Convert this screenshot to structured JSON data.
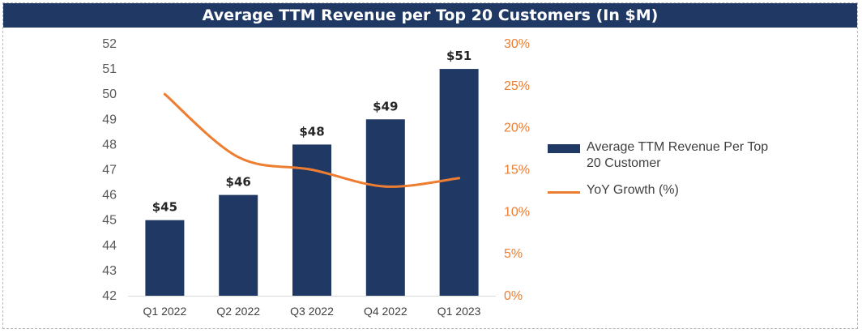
{
  "chart_data": {
    "type": "bar",
    "title": "Average TTM Revenue per Top 20 Customers (In $M)",
    "categories": [
      "Q1 2022",
      "Q2 2022",
      "Q3 2022",
      "Q4 2022",
      "Q1 2023"
    ],
    "series": [
      {
        "name": "Average TTM Revenue Per Top 20 Customer",
        "type": "bar",
        "axis": "left",
        "values": [
          45,
          46,
          48,
          49,
          51
        ],
        "data_labels": [
          "$45",
          "$46",
          "$48",
          "$49",
          "$51"
        ],
        "color": "#1f3864"
      },
      {
        "name": "YoY Growth (%)",
        "type": "line",
        "axis": "right",
        "values": [
          0.24,
          0.165,
          0.15,
          0.13,
          0.14
        ],
        "color": "#ed7d31"
      }
    ],
    "left_axis": {
      "ylim": [
        42,
        52
      ],
      "ticks": [
        "42",
        "43",
        "44",
        "45",
        "46",
        "47",
        "48",
        "49",
        "50",
        "51",
        "52"
      ]
    },
    "right_axis": {
      "ylim": [
        0,
        0.3
      ],
      "ticks": [
        "0%",
        "5%",
        "10%",
        "15%",
        "20%",
        "25%",
        "30%"
      ],
      "color": "#ed7d31"
    },
    "grid": false,
    "legend_position": "right"
  }
}
